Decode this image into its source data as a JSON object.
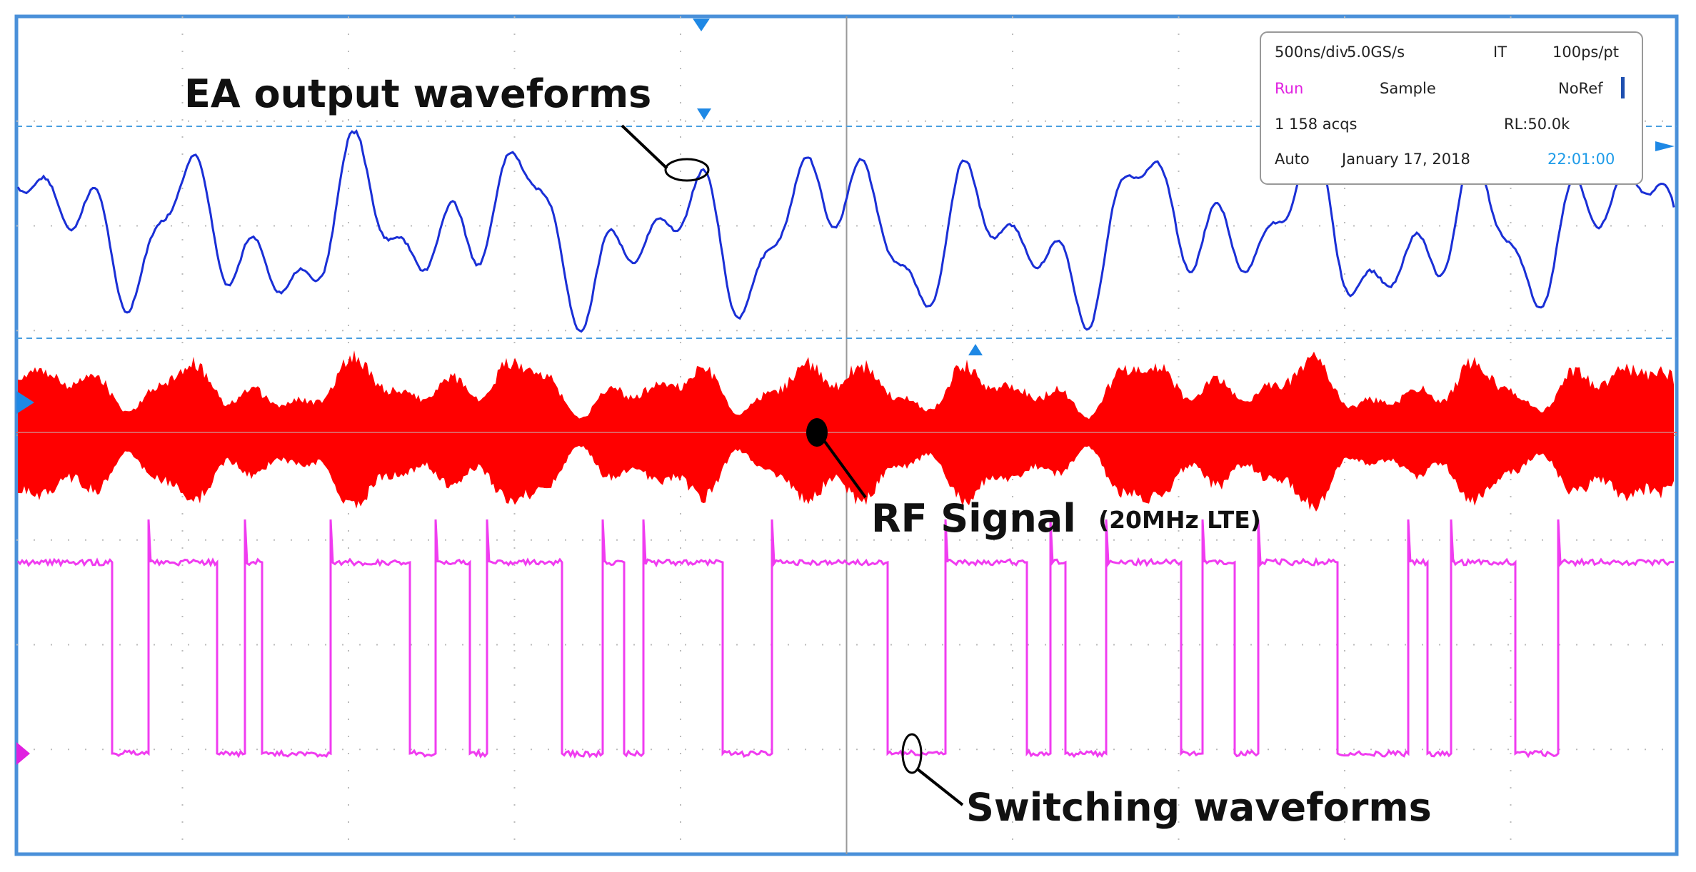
{
  "annotations": {
    "ea": "EA output waveforms",
    "rf": "RF Signal",
    "rf_note": "(20MHz LTE)",
    "sw": "Switching waveforms"
  },
  "info": {
    "rows": [
      [
        "500ns/div",
        "5.0GS/s",
        "IT",
        "100ps/pt"
      ],
      [
        "Run",
        "Sample",
        "NoRef"
      ],
      [
        "1 158 acqs",
        "RL:50.0k"
      ],
      [
        "Auto",
        "January 17, 2018",
        "22:01:00"
      ]
    ]
  }
}
